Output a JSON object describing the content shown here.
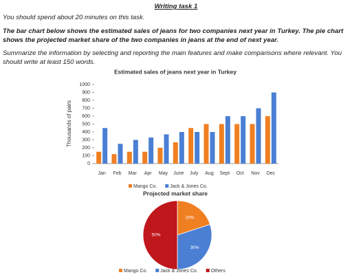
{
  "header": {
    "title": "Writing task 1"
  },
  "paragraphs": [
    "You should spend about 20 minutes on this task.",
    "The bar chart below shows the estimated sales of jeans for two companies next year in Turkey. The pie chart shows the projected market share of the two companies in jeans at the end of next year.",
    "Summarize the information by selecting and reporting the main features and make comparisons where relevant. You should write at least 150 words."
  ],
  "chart_data": [
    {
      "type": "bar",
      "title": "Estimated sales of jeans next year in Turkey",
      "y_label": "Thousands of pairs",
      "categories": [
        "Jan",
        "Feb",
        "Mar",
        "Apr",
        "May",
        "June",
        "July",
        "Aug",
        "Sept",
        "Oct",
        "Nov",
        "Dec"
      ],
      "series": [
        {
          "name": "Mango Co.",
          "color": "#f07f22",
          "values": [
            150,
            120,
            150,
            150,
            200,
            270,
            450,
            500,
            500,
            500,
            500,
            600
          ]
        },
        {
          "name": "Jack & Jones Co.",
          "color": "#4a7fd4",
          "values": [
            450,
            250,
            300,
            330,
            370,
            400,
            400,
            400,
            600,
            600,
            700,
            900
          ]
        }
      ],
      "ylim": [
        0,
        1000
      ],
      "yticks": [
        0,
        100,
        200,
        300,
        400,
        500,
        600,
        700,
        800,
        900,
        1000
      ],
      "grid": false,
      "legend": "bottom"
    },
    {
      "type": "pie",
      "title": "Projected market share",
      "categories": [
        "Mango Co.",
        "Jack & Jones Co.",
        "Others"
      ],
      "values": [
        20,
        30,
        50
      ],
      "value_labels": [
        "20%",
        "30%",
        "50%"
      ],
      "colors": [
        "#f07f22",
        "#4a7fd4",
        "#c0171c"
      ],
      "legend": "bottom"
    }
  ]
}
